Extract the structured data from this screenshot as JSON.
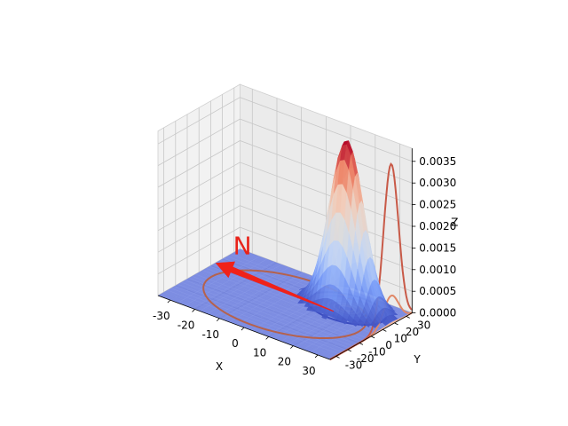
{
  "chart_data": {
    "type": "surface3d",
    "title": "",
    "xlabel": "X",
    "ylabel": "Y",
    "zlabel": "Z",
    "xlim": [
      -35,
      35
    ],
    "ylim": [
      -35,
      35
    ],
    "zlim": [
      0,
      0.0038
    ],
    "x_ticks": [
      -30,
      -20,
      -10,
      0,
      10,
      20,
      30
    ],
    "y_ticks": [
      -30,
      -20,
      -10,
      0,
      10,
      20,
      30
    ],
    "z_ticks": [
      "0.0000",
      "0.0005",
      "0.0010",
      "0.0015",
      "0.0020",
      "0.0025",
      "0.0030",
      "0.0035"
    ],
    "surface": {
      "function": "gaussian2d",
      "center": [
        17,
        17
      ],
      "sigma": 6.4,
      "peak": 0.0039,
      "colormap": "coolwarm",
      "domain": [
        -35,
        35
      ],
      "grid_points": 40
    },
    "floor_contours": {
      "plane": "z",
      "levels": [
        0.0003,
        0.0008,
        0.0015,
        0.0022,
        0.003,
        0.0036
      ]
    },
    "wall_contours": {
      "plane": "x",
      "x_value": 35,
      "levels": [
        -3,
        5,
        15
      ]
    },
    "floor_plane": {
      "z": 0,
      "color": "#5a6fe0"
    },
    "circle": {
      "center": [
        0,
        0
      ],
      "radius": 30,
      "z": 0,
      "color": "#b5624d"
    },
    "arrow": {
      "label": "N",
      "color": "#f0221a",
      "from": [
        15,
        10
      ],
      "to": [
        -35,
        14
      ]
    },
    "grid": true,
    "background_panes": "#f2f2f2"
  }
}
